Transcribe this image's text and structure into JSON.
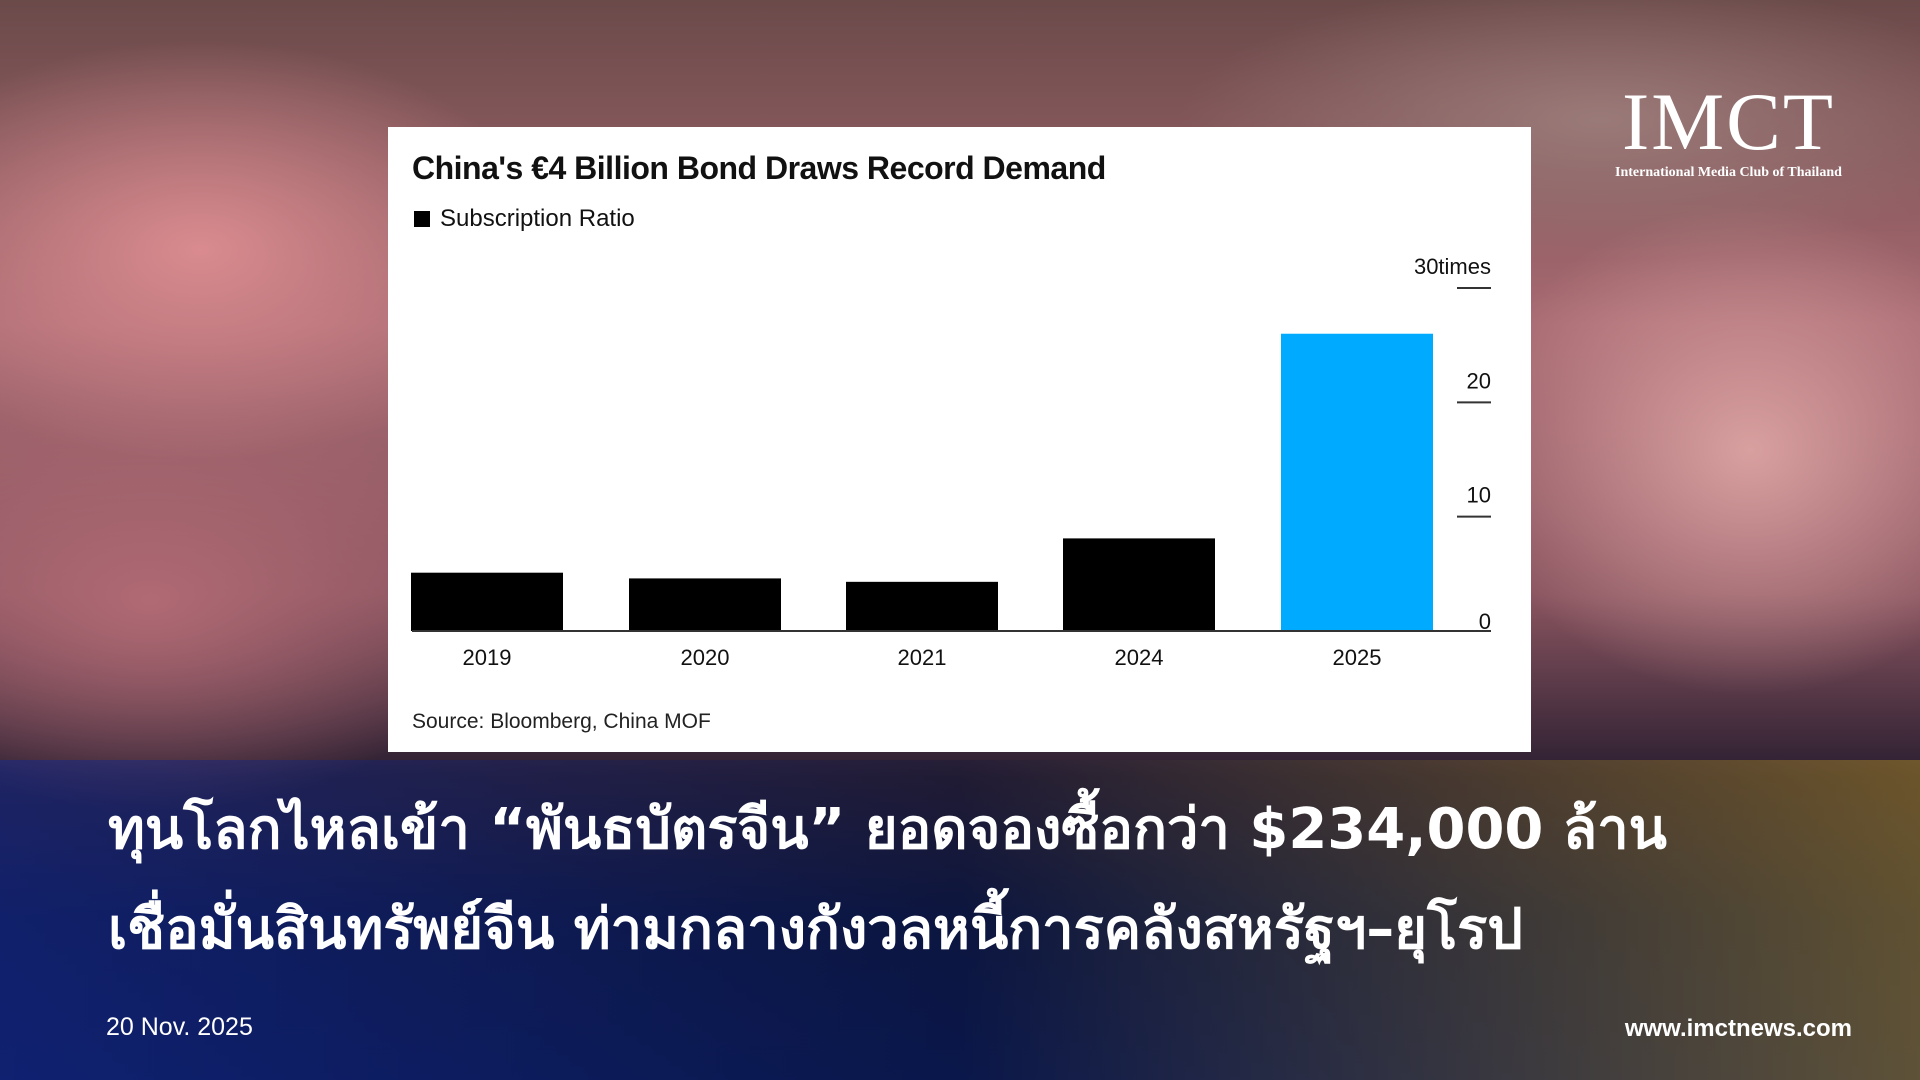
{
  "logo": {
    "main": "IMCT",
    "sub": "International Media Club of Thailand",
    "accent": "#c9a227"
  },
  "chart_data": {
    "type": "bar",
    "title": "China's €4 Billion Bond Draws Record Demand",
    "legend": "Subscription Ratio",
    "categories": [
      "2019",
      "2020",
      "2021",
      "2024",
      "2025"
    ],
    "values": [
      5.1,
      4.6,
      4.3,
      8.1,
      26.0
    ],
    "colors": [
      "#000000",
      "#000000",
      "#000000",
      "#000000",
      "#00aaff"
    ],
    "ylim": [
      0,
      30
    ],
    "yticks": [
      0,
      10,
      20,
      30
    ],
    "ytick_labels": [
      "0",
      "10",
      "20",
      "30times"
    ],
    "axis_position": "right",
    "source": "Source: Bloomberg, China MOF"
  },
  "headline": {
    "line1": "ทุนโลกไหลเข้า “พันธบัตรจีน” ยอดจองซื้อกว่า $234,000 ล้าน",
    "line2": "เชื่อมั่นสินทรัพย์จีน ท่ามกลางกังวลหนี้การคลังสหรัฐฯ–ยุโรป"
  },
  "date": "20 Nov. 2025",
  "url": "www.imctnews.com"
}
